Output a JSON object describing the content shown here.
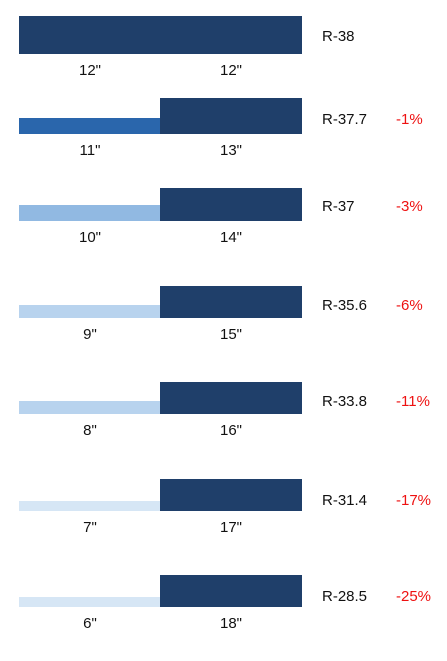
{
  "colors": {
    "dark": "#1f3f6a",
    "text": "#111111",
    "pct": "#ee1111"
  },
  "rows": [
    {
      "left_in": "12\"",
      "right_in": "12\"",
      "r_value": "R-38",
      "pct": "",
      "left_color": "#1f3f6a"
    },
    {
      "left_in": "11\"",
      "right_in": "13\"",
      "r_value": "R-37.7",
      "pct": "-1%",
      "left_color": "#2a66ac"
    },
    {
      "left_in": "10\"",
      "right_in": "14\"",
      "r_value": "R-37",
      "pct": "-3%",
      "left_color": "#91b9e2"
    },
    {
      "left_in": "9\"",
      "right_in": "15\"",
      "r_value": "R-35.6",
      "pct": "-6%",
      "left_color": "#b8d3ee"
    },
    {
      "left_in": "8\"",
      "right_in": "16\"",
      "r_value": "R-33.8",
      "pct": "-11%",
      "left_color": "#b8d3ee"
    },
    {
      "left_in": "7\"",
      "right_in": "17\"",
      "r_value": "R-31.4",
      "pct": "-17%",
      "left_color": "#d6e6f5"
    },
    {
      "left_in": "6\"",
      "right_in": "18\"",
      "r_value": "R-28.5",
      "pct": "-25%",
      "left_color": "#d6e6f5"
    }
  ]
}
